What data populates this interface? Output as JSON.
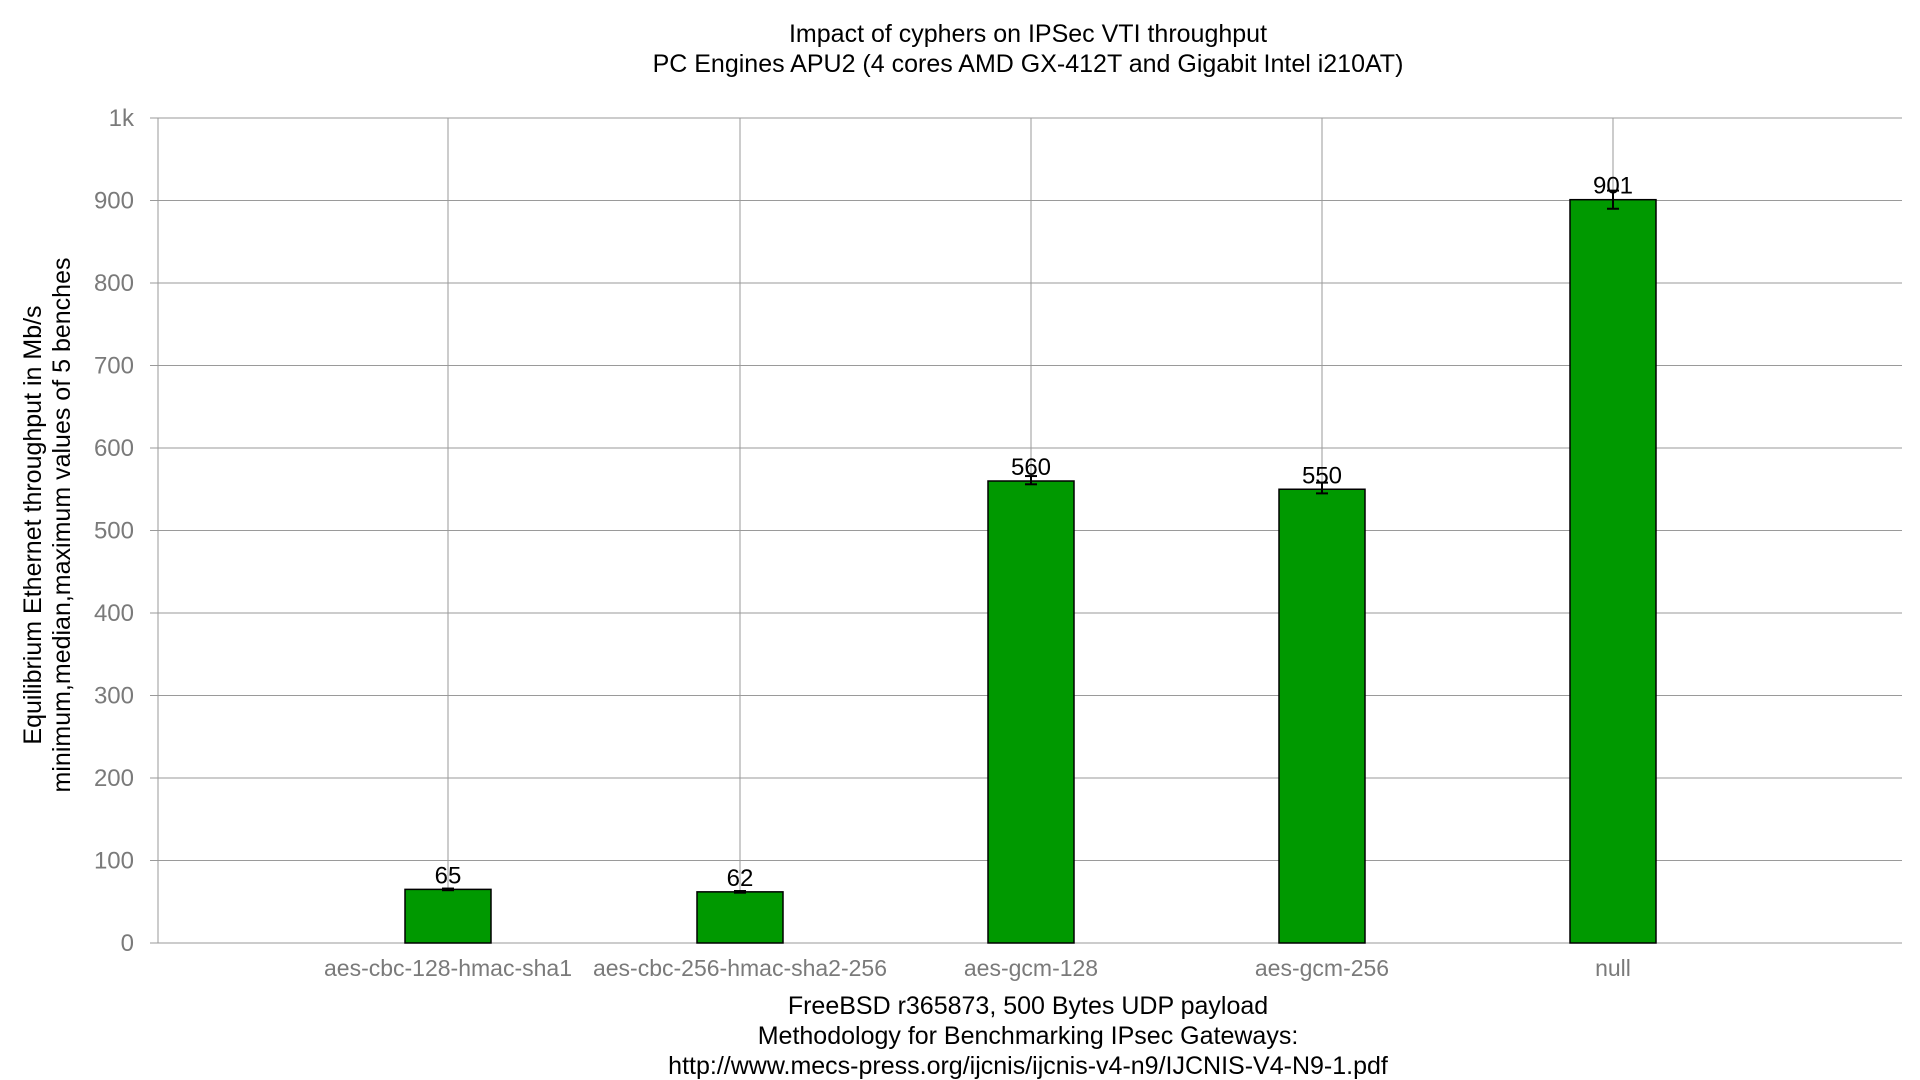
{
  "chart_data": {
    "type": "bar",
    "title_lines": [
      "Impact of cyphers on IPSec VTI throughput",
      "PC Engines APU2 (4 cores AMD GX-412T and Gigabit Intel i210AT)"
    ],
    "ylabel_lines": [
      "Equilibrium Ethernet throughput in Mb/s",
      "minimum,median,maximum values of 5 benches"
    ],
    "xlabel_lines": [
      "FreeBSD r365873, 500 Bytes UDP payload",
      "Methodology for Benchmarking IPsec Gateways:",
      "http://www.mecs-press.org/ijcnis/ijcnis-v4-n9/IJCNIS-V4-N9-1.pdf"
    ],
    "categories": [
      "aes-cbc-128-hmac-sha1",
      "aes-cbc-256-hmac-sha2-256",
      "aes-gcm-128",
      "aes-gcm-256",
      "null"
    ],
    "values": [
      65,
      62,
      560,
      550,
      901
    ],
    "error_min": [
      64,
      61,
      556,
      545,
      890
    ],
    "error_max": [
      66,
      63,
      566,
      558,
      912
    ],
    "data_labels": [
      "65",
      "62",
      "560",
      "550",
      "901"
    ],
    "ylim": [
      0,
      1000
    ],
    "yticks": [
      0,
      100,
      200,
      300,
      400,
      500,
      600,
      700,
      800,
      900,
      1000
    ],
    "ytick_labels": [
      "0",
      "100",
      "200",
      "300",
      "400",
      "500",
      "600",
      "700",
      "800",
      "900",
      "1k"
    ],
    "grid": true,
    "bar_color": "#009900",
    "grid_color": "#9a9a9a"
  }
}
